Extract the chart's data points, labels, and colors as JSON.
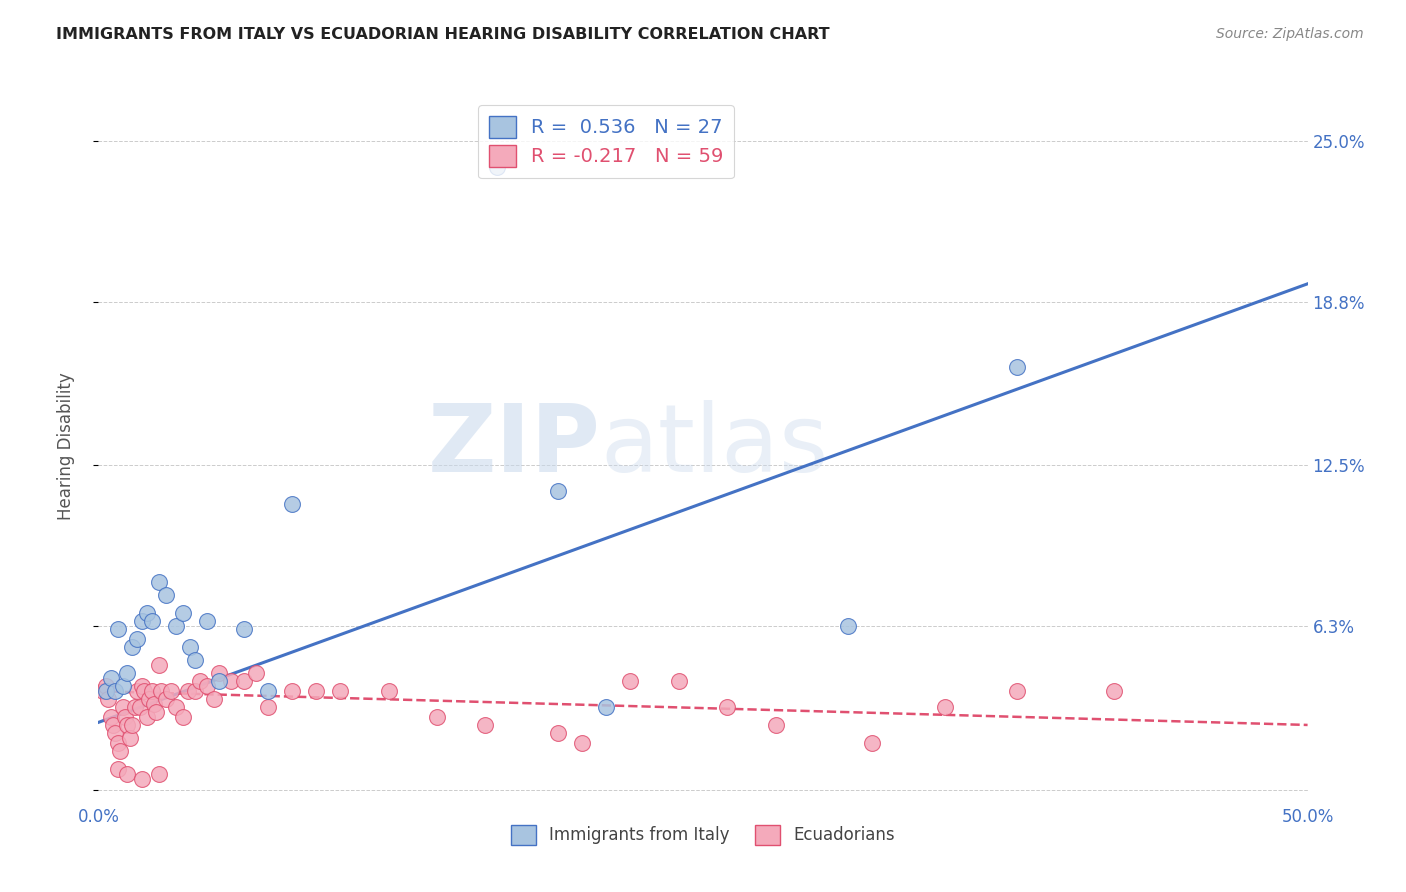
{
  "title": "IMMIGRANTS FROM ITALY VS ECUADORIAN HEARING DISABILITY CORRELATION CHART",
  "source": "Source: ZipAtlas.com",
  "ylabel": "Hearing Disability",
  "xlim": [
    0.0,
    0.5
  ],
  "ylim": [
    -0.005,
    0.27
  ],
  "yticks": [
    0.0,
    0.063,
    0.125,
    0.188,
    0.25
  ],
  "ytick_labels": [
    "",
    "6.3%",
    "12.5%",
    "18.8%",
    "25.0%"
  ],
  "xticks": [
    0.0,
    0.1,
    0.2,
    0.3,
    0.4,
    0.5
  ],
  "xtick_labels": [
    "0.0%",
    "",
    "",
    "",
    "",
    "50.0%"
  ],
  "blue_R": 0.536,
  "blue_N": 27,
  "pink_R": -0.217,
  "pink_N": 59,
  "blue_color": "#A8C4E0",
  "pink_color": "#F4AABB",
  "blue_line_color": "#4472C4",
  "pink_line_color": "#E05070",
  "legend_label_blue": "Immigrants from Italy",
  "legend_label_pink": "Ecuadorians",
  "blue_scatter_x": [
    0.003,
    0.005,
    0.007,
    0.008,
    0.01,
    0.012,
    0.014,
    0.016,
    0.018,
    0.02,
    0.022,
    0.025,
    0.028,
    0.032,
    0.035,
    0.038,
    0.04,
    0.045,
    0.05,
    0.06,
    0.07,
    0.08,
    0.19,
    0.21,
    0.31,
    0.38,
    0.165
  ],
  "blue_scatter_y": [
    0.038,
    0.043,
    0.038,
    0.062,
    0.04,
    0.045,
    0.055,
    0.058,
    0.065,
    0.068,
    0.065,
    0.08,
    0.075,
    0.063,
    0.068,
    0.055,
    0.05,
    0.065,
    0.042,
    0.062,
    0.038,
    0.11,
    0.115,
    0.032,
    0.063,
    0.163,
    0.24
  ],
  "pink_scatter_x": [
    0.002,
    0.003,
    0.004,
    0.005,
    0.006,
    0.007,
    0.008,
    0.009,
    0.01,
    0.011,
    0.012,
    0.013,
    0.014,
    0.015,
    0.016,
    0.017,
    0.018,
    0.019,
    0.02,
    0.021,
    0.022,
    0.023,
    0.024,
    0.025,
    0.026,
    0.028,
    0.03,
    0.032,
    0.035,
    0.037,
    0.04,
    0.042,
    0.045,
    0.048,
    0.05,
    0.055,
    0.06,
    0.065,
    0.07,
    0.08,
    0.09,
    0.1,
    0.12,
    0.14,
    0.16,
    0.19,
    0.22,
    0.24,
    0.26,
    0.28,
    0.32,
    0.35,
    0.38,
    0.42,
    0.008,
    0.012,
    0.018,
    0.025,
    0.2
  ],
  "pink_scatter_y": [
    0.038,
    0.04,
    0.035,
    0.028,
    0.025,
    0.022,
    0.018,
    0.015,
    0.032,
    0.028,
    0.025,
    0.02,
    0.025,
    0.032,
    0.038,
    0.032,
    0.04,
    0.038,
    0.028,
    0.035,
    0.038,
    0.033,
    0.03,
    0.048,
    0.038,
    0.035,
    0.038,
    0.032,
    0.028,
    0.038,
    0.038,
    0.042,
    0.04,
    0.035,
    0.045,
    0.042,
    0.042,
    0.045,
    0.032,
    0.038,
    0.038,
    0.038,
    0.038,
    0.028,
    0.025,
    0.022,
    0.042,
    0.042,
    0.032,
    0.025,
    0.018,
    0.032,
    0.038,
    0.038,
    0.008,
    0.006,
    0.004,
    0.006,
    0.018
  ],
  "blue_trend_x": [
    0.0,
    0.5
  ],
  "blue_trend_y": [
    0.026,
    0.195
  ],
  "pink_trend_x": [
    0.0,
    0.5
  ],
  "pink_trend_y": [
    0.038,
    0.025
  ],
  "background_color": "#FFFFFF",
  "grid_color": "#CCCCCC"
}
